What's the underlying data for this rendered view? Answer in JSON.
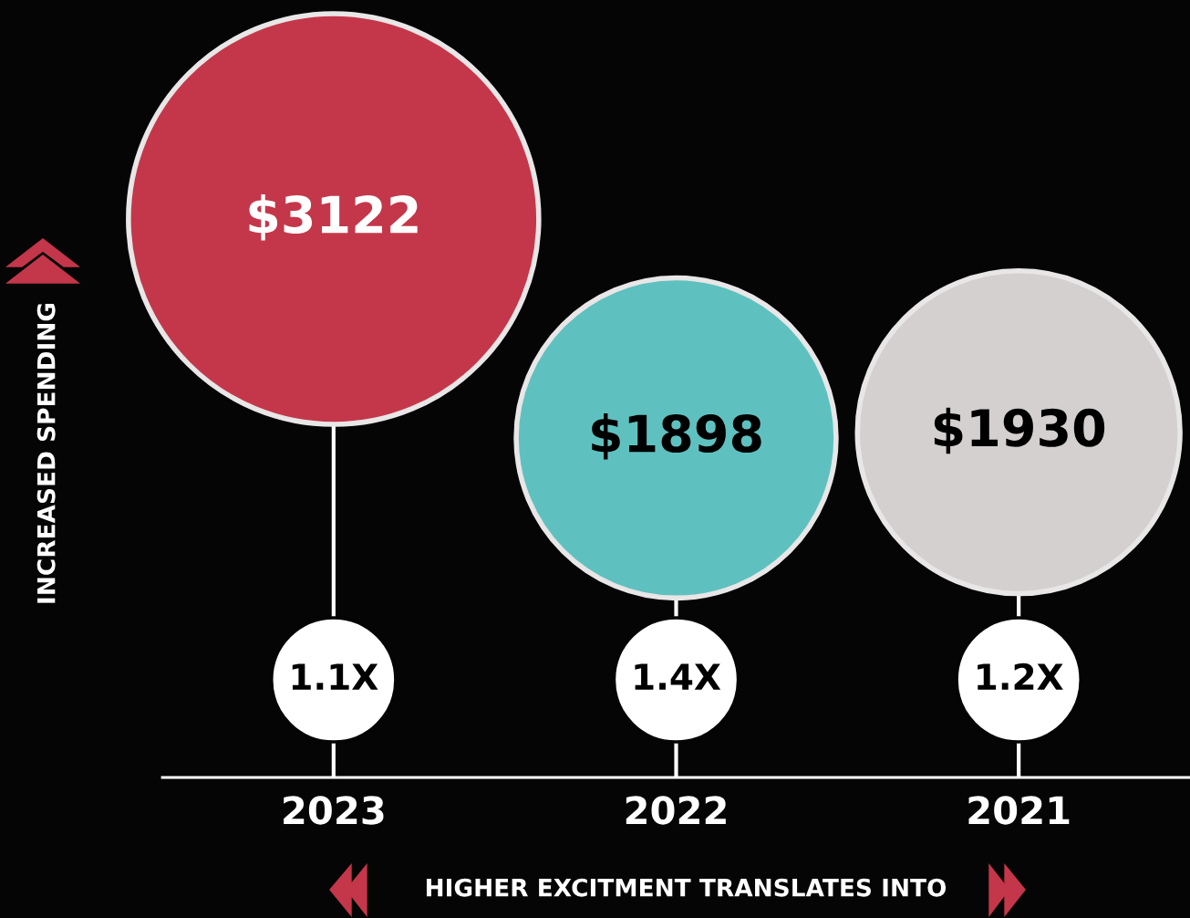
{
  "chart_data": {
    "type": "other",
    "xlabel": "HIGHER EXCITMENT TRANSLATES INTO",
    "ylabel": "INCREASED SPENDING",
    "categories": [
      "2023",
      "2022",
      "2021"
    ],
    "values": [
      3122,
      1898,
      1930
    ],
    "value_labels": [
      "$3122",
      "$1898",
      "$1930"
    ],
    "colors": [
      "#c4374a",
      "#5fc1bf",
      "#d3d0cf"
    ],
    "annotations": [
      "1.1X",
      "1.4X",
      "1.2X"
    ]
  }
}
